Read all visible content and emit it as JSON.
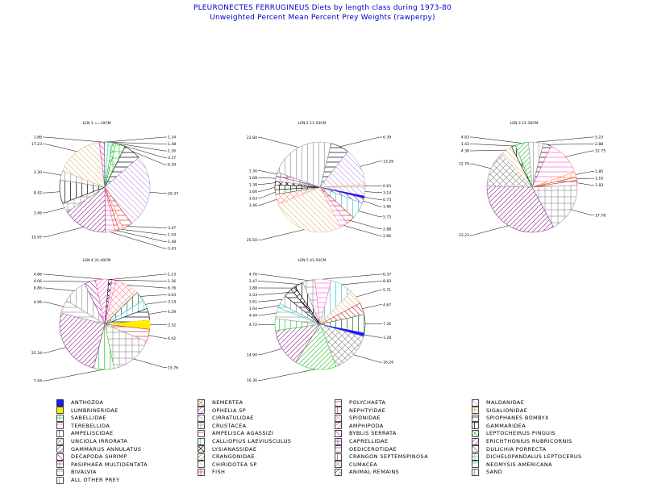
{
  "header": {
    "title": "PLEURONECTES FERRUGINEUS Diets by length class during 1973-80",
    "subtitle": "Unweighted Percent Mean Percent Prey Weights (rawperpy)"
  },
  "colors": {
    "title": "#0000cc",
    "ANTHOZOA": "#1a1aff",
    "NEMERTEA": "#b3862d",
    "POLYCHAETA": "#cc3333",
    "MALDANIDAE": "#c0a0e0",
    "LUMBRINERIDAE": "#ffee00",
    "OPHELIA SP": "#cc33cc",
    "NEPHTYIDAE": "#cc3333",
    "SIGALIONIDAE": "#ff9933",
    "SABELLIDAE": "#33cc33",
    "CIRRATULIDAE": "#c0a0e0",
    "SPIONIDAE": "#ff9999",
    "SPIOPHANES BOMBYX": "#000000",
    "TEREBELLIDA": "#ff66cc",
    "CRUSTACEA": "#999999",
    "AMPHIPODA": "#ff66cc",
    "GAMMARIDEA": "#000000",
    "AMPELISCIDAE": "#336633",
    "AMPELISCA AGASSIZI": "#cc3333",
    "BYBLIS SERRATA": "#cc33cc",
    "LEPTOCHEIRUS PINGUIS": "#33cc33",
    "UNCIOLA IRRORATA": "#999999",
    "CALLIOPIUS LAEVIUSCULUS": "#33cccc",
    "CAPRELLIDAE": "#993399",
    "ERICHTHONIUS RUBRICORNIS": "#cc33cc",
    "GAMMARUS ANNULATUS": "#666666",
    "LYSIANASSIDAE": "#000000",
    "OEDICEROTIDAE": "#993333",
    "DULICHIA PORRECTA": "#cc3333",
    "DECAPODA SHRIMP": "#993399",
    "CRANGONIDAE": "#33cc33",
    "CRANGON SEPTEMSPINOSA": "#cc33cc",
    "DICHELOPANDALUS LEPTOCERUS": "#33cccc",
    "PASIPHAEA MULTIDENTATA": "#cc33cc",
    "CHIRIDOTEA SP": "#e0c080",
    "CUMACEA": "#999999",
    "NEOMYSIS AMERICANA": "#33cccc",
    "BIVALVIA": "#999999",
    "FISH": "#cc3333",
    "ANIMAL REMAINS": "#993399",
    "SAND": "#33cc33",
    "ALL OTHER PREY": "#999999"
  },
  "chart_data": [
    {
      "type": "pie",
      "title": "LEN 1 <=10CM",
      "slices": [
        {
          "category": "SABELLIDAE",
          "value": 3.37
        },
        {
          "category": "SPIOPHANES BOMBYX",
          "value": 6.29
        },
        {
          "category": "CIRRATULIDAE",
          "value": 26.37
        },
        {
          "category": "POLYCHAETA",
          "value": 3.47
        },
        {
          "category": "SPIONIDAE",
          "value": 1.54
        },
        {
          "category": "AMPELISCA AGASSIZI",
          "value": 1.48
        },
        {
          "category": "TEREBELLIDA",
          "value": 3.43
        },
        {
          "category": "ANIMAL REMAINS",
          "value": 15.97
        },
        {
          "category": "CRUSTACEA",
          "value": 3.46
        },
        {
          "category": "GAMMARIDEA",
          "value": 8.42
        },
        {
          "category": "ALL OTHER PREY",
          "value": 3.3
        },
        {
          "category": "CHIRIDOTEA SP",
          "value": 17.23
        },
        {
          "category": "BYBLIS SERRATA",
          "value": 1.86
        },
        {
          "category": "AMPELISCIDAE",
          "value": 1.34
        },
        {
          "category": "CALLIOPIUS LAEVIUSCULUS",
          "value": 1.48
        },
        {
          "category": "LEPTOCHEIRUS PINGUIS",
          "value": 1.26
        }
      ]
    },
    {
      "type": "pie",
      "title": "LEN 2 11-20CM",
      "slices": [
        {
          "category": "SPIOPHANES BOMBYX",
          "value": 6.39
        },
        {
          "category": "CIRRATULIDAE",
          "value": 13.26
        },
        {
          "category": "SIGALIONIDAE",
          "value": 0.63
        },
        {
          "category": "MALDANIDAE",
          "value": 3.14
        },
        {
          "category": "ANTHOZOA",
          "value": 0.73
        },
        {
          "category": "DECAPODA SHRIMP",
          "value": 1.86
        },
        {
          "category": "CALLIOPIUS LAEVIUSCULUS",
          "value": 5.73
        },
        {
          "category": "POLYCHAETA",
          "value": 2.88
        },
        {
          "category": "TEREBELLIDA",
          "value": 2.66
        },
        {
          "category": "CHIRIDOTEA SP",
          "value": 25.5
        },
        {
          "category": "SPIONIDAE",
          "value": 3.46
        },
        {
          "category": "AMPELISCIDAE",
          "value": 1.63
        },
        {
          "category": "GAMMARIDEA",
          "value": 1.66
        },
        {
          "category": "LYSIANASSIDAE",
          "value": 1.38
        },
        {
          "category": "CRUSTACEA",
          "value": 1.68
        },
        {
          "category": "CAPRELLIDAE",
          "value": 1.36
        },
        {
          "category": "ALL OTHER PREY",
          "value": 22.84
        }
      ]
    },
    {
      "type": "pie",
      "title": "LEN 3 21-30CM",
      "slices": [
        {
          "category": "SPIOPHANES BOMBYX",
          "value": 2.88
        },
        {
          "category": "TEREBELLIDA",
          "value": 12.75
        },
        {
          "category": "SIGALIONIDAE",
          "value": 1.85
        },
        {
          "category": "POLYCHAETA",
          "value": 1.1
        },
        {
          "category": "AMPELISCA AGASSIZI",
          "value": 1.83
        },
        {
          "category": "CRUSTACEA",
          "value": 17.78
        },
        {
          "category": "ANIMAL REMAINS",
          "value": 33.23
        },
        {
          "category": "UNCIOLA IRRORATA",
          "value": 12.7
        },
        {
          "category": "CHIRIDOTEA SP",
          "value": 4.38
        },
        {
          "category": "GAMMARIDEA",
          "value": 1.42
        },
        {
          "category": "CRANGONIDAE",
          "value": 4.83
        },
        {
          "category": "ALL OTHER PREY",
          "value": 5.23
        }
      ]
    },
    {
      "type": "pie",
      "title": "LEN 4 31-40CM",
      "slices": [
        {
          "category": "SPIONIDAE",
          "value": 8.76
        },
        {
          "category": "AMPELISCIDAE",
          "value": 3.63
        },
        {
          "category": "CALLIOPIUS LAEVIUSCULUS",
          "value": 3.14
        },
        {
          "category": "SPIOPHANES BOMBYX",
          "value": 4.29
        },
        {
          "category": "LUMBRINERIDAE",
          "value": 3.32
        },
        {
          "category": "POLYCHAETA",
          "value": 4.42
        },
        {
          "category": "CRUSTACEA",
          "value": 15.76
        },
        {
          "category": "SAND",
          "value": 7.44
        },
        {
          "category": "ANIMAL REMAINS",
          "value": 25.34
        },
        {
          "category": "BIVALVIA",
          "value": 4.96
        },
        {
          "category": "ALL OTHER PREY",
          "value": 8.86
        },
        {
          "category": "DECAPODA SHRIMP",
          "value": 4.06
        },
        {
          "category": "AMPHIPODA",
          "value": 4.86
        },
        {
          "category": "LYSIANASSIDAE",
          "value": 1.23
        },
        {
          "category": "TEREBELLIDA",
          "value": 1.36
        }
      ]
    },
    {
      "type": "pie",
      "title": "LEN 5 41-50CM",
      "slices": [
        {
          "category": "CALLIOPIUS LAEVIUSCULUS",
          "value": 8.83
        },
        {
          "category": "CHIRIDOTEA SP",
          "value": 5.71
        },
        {
          "category": "DULICHIA PORRECTA",
          "value": 4.67
        },
        {
          "category": "AMPELISCIDAE",
          "value": 7.26
        },
        {
          "category": "ANTHOZOA",
          "value": 1.28
        },
        {
          "category": "CUMACEA",
          "value": 16.26
        },
        {
          "category": "CRANGONIDAE",
          "value": 16.36
        },
        {
          "category": "ANIMAL REMAINS",
          "value": 14.9
        },
        {
          "category": "SAND",
          "value": 4.72
        },
        {
          "category": "BIVALVIA",
          "value": 4.44
        },
        {
          "category": "NEOMYSIS AMERICANA",
          "value": 1.64
        },
        {
          "category": "ALL OTHER PREY",
          "value": 3.61
        },
        {
          "category": "SPIOPHANES BOMBYX",
          "value": 3.33
        },
        {
          "category": "LYSIANASSIDAE",
          "value": 1.88
        },
        {
          "category": "GAMMARIDEA",
          "value": 3.47
        },
        {
          "category": "CRUSTACEA",
          "value": 4.76
        },
        {
          "category": "TEREBELLIDA",
          "value": 6.37
        }
      ]
    }
  ],
  "legend": {
    "columns": [
      [
        "ANTHOZOA",
        "LUMBRINERIDAE",
        "SABELLIDAE",
        "TEREBELLIDA",
        "AMPELISCIDAE",
        "UNCIOLA IRRORATA",
        "GAMMARUS ANNULATUS",
        "DECAPODA SHRIMP",
        "PASIPHAEA MULTIDENTATA",
        "BIVALVIA",
        "ALL OTHER PREY"
      ],
      [
        "NEMERTEA",
        "OPHELIA SP",
        "CIRRATULIDAE",
        "CRUSTACEA",
        "AMPELISCA AGASSIZI",
        "CALLIOPIUS LAEVIUSCULUS",
        "LYSIANASSIDAE",
        "CRANGONIDAE",
        "CHIRIDOTEA SP",
        "FISH"
      ],
      [
        "POLYCHAETA",
        "NEPHTYIDAE",
        "SPIONIDAE",
        "AMPHIPODA",
        "BYBLIS SERRATA",
        "CAPRELLIDAE",
        "OEDICEROTIDAE",
        "CRANGON SEPTEMSPINOSA",
        "CUMACEA",
        "ANIMAL REMAINS"
      ],
      [
        "MALDANIDAE",
        "SIGALIONIDAE",
        "SPIOPHANES BOMBYX",
        "GAMMARIDEA",
        "LEPTOCHEIRUS PINGUIS",
        "ERICHTHONIUS RUBRICORNIS",
        "DULICHIA PORRECTA",
        "DICHELOPANDALUS LEPTOCERUS",
        "NEOMYSIS AMERICANA",
        "SAND"
      ]
    ]
  }
}
